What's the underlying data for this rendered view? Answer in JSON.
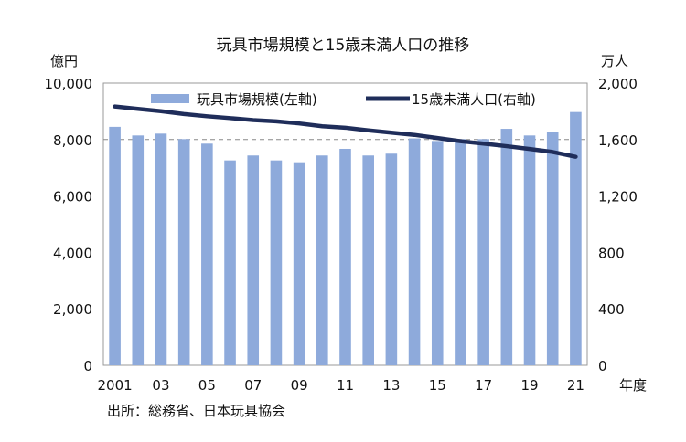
{
  "chart_data": {
    "type": "bar+line",
    "title": "玩具市場規模と15歳未満人口の推移",
    "ylabel_left": "億円",
    "ylabel_right": "万人",
    "xlabel": "年度",
    "source": "出所：総務省、日本玩具協会",
    "ylim_left": [
      0,
      10000
    ],
    "ylim_right": [
      0,
      2000
    ],
    "yticks_left": [
      "0",
      "2,000",
      "4,000",
      "6,000",
      "8,000",
      "10,000"
    ],
    "yticks_right": [
      "0",
      "400",
      "800",
      "1,200",
      "1,600",
      "2,000"
    ],
    "x": [
      2001,
      2002,
      2003,
      2004,
      2005,
      2006,
      2007,
      2008,
      2009,
      2010,
      2011,
      2012,
      2013,
      2014,
      2015,
      2016,
      2017,
      2018,
      2019,
      2020,
      2021
    ],
    "xtick_labels": [
      "2001",
      "",
      "03",
      "",
      "05",
      "",
      "07",
      "",
      "09",
      "",
      "11",
      "",
      "13",
      "",
      "15",
      "",
      "17",
      "",
      "19",
      "",
      "21"
    ],
    "grid": "dashed horizontal at 8,000",
    "legend_position": "top",
    "series": [
      {
        "name": "玩具市場規模(左軸)",
        "type": "bar",
        "axis": "left",
        "color": "#8eaadb",
        "values": [
          8450,
          8145,
          8210,
          8015,
          7855,
          7260,
          7435,
          7260,
          7195,
          7435,
          7670,
          7435,
          7500,
          8040,
          7950,
          8015,
          8015,
          8380,
          8145,
          8260,
          8975
        ]
      },
      {
        "name": "15歳未満人口(右軸)",
        "type": "line",
        "axis": "right",
        "color": "#1f2d5a",
        "values": [
          1834,
          1817,
          1801,
          1781,
          1765,
          1752,
          1738,
          1729,
          1714,
          1694,
          1684,
          1665,
          1649,
          1633,
          1611,
          1588,
          1571,
          1553,
          1533,
          1512,
          1478
        ]
      }
    ]
  }
}
